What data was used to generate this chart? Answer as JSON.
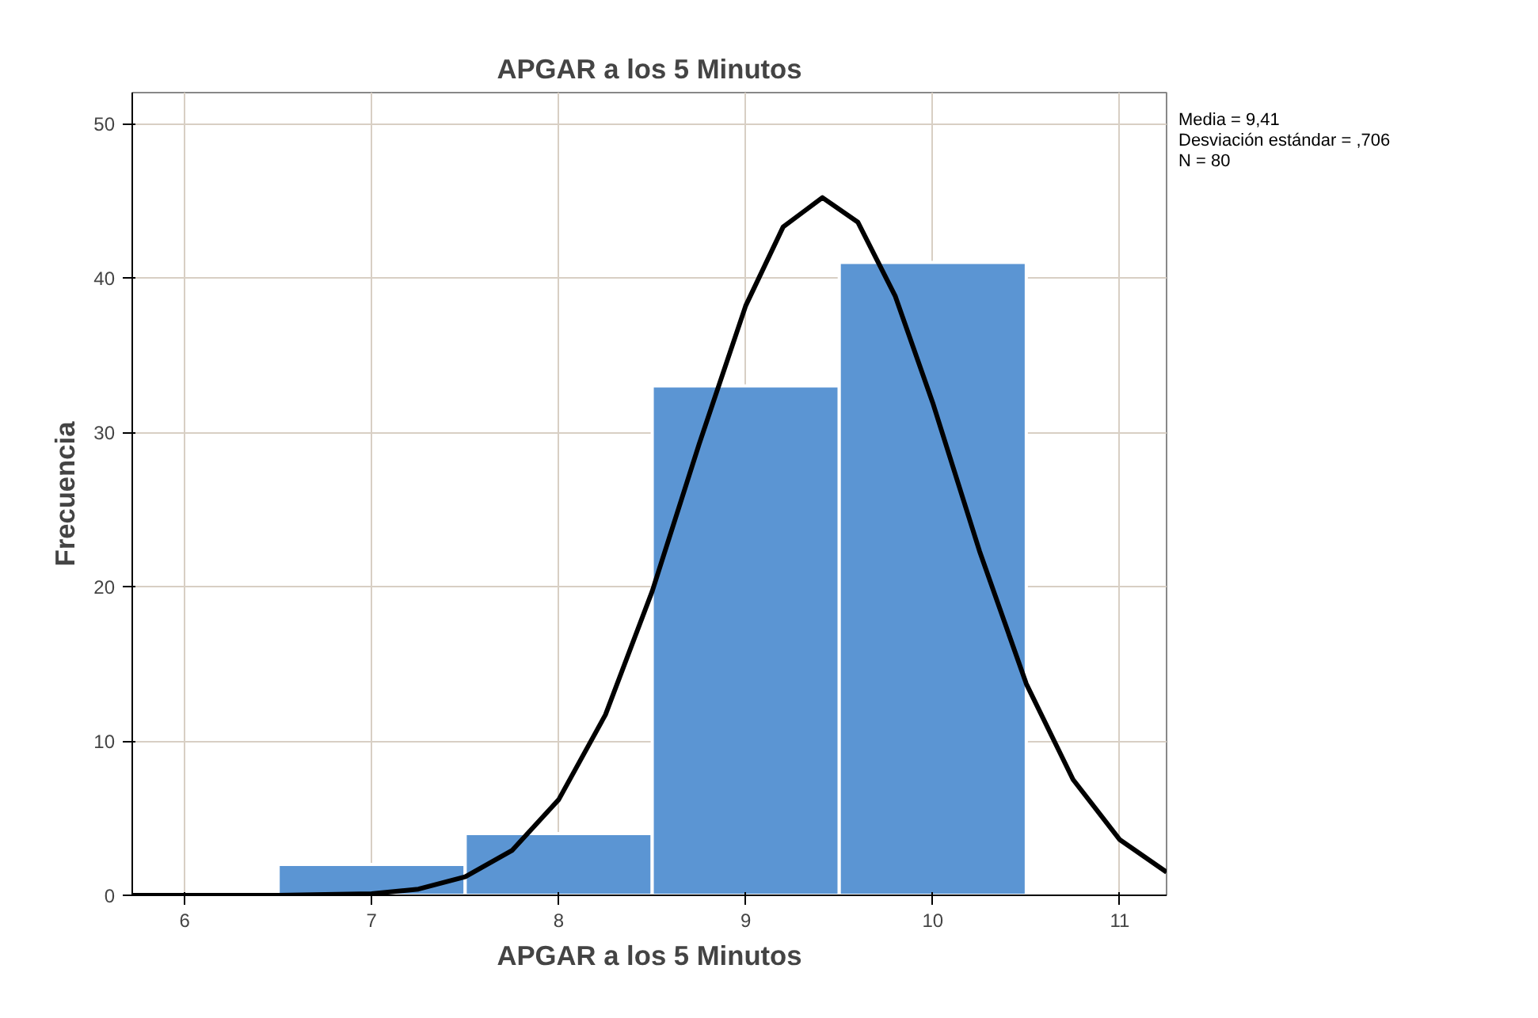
{
  "chart_data": {
    "type": "histogram",
    "title": "APGAR a los 5 Minutos",
    "xlabel": "APGAR a los 5 Minutos",
    "ylabel": "Frecuencia",
    "bins": [
      6.5,
      7.5,
      8.5,
      9.5,
      10.5
    ],
    "values": [
      2,
      4,
      33,
      41
    ],
    "color": "#5b95d3",
    "series": [
      {
        "type": "line",
        "color": "#000000",
        "x": [
          5.72,
          6.5,
          7,
          7.25,
          7.5,
          7.75,
          8,
          8.25,
          8.5,
          8.75,
          9,
          9.2,
          9.41,
          9.6,
          9.8,
          10,
          10.25,
          10.5,
          10.75,
          11,
          11.25
        ],
        "values": [
          0,
          0,
          0.1,
          0.4,
          1.2,
          2.9,
          6.2,
          11.7,
          19.7,
          29.2,
          38.2,
          43.3,
          45.2,
          43.6,
          38.8,
          31.9,
          22.3,
          13.7,
          7.5,
          3.6,
          1.5
        ]
      }
    ],
    "xlim": [
      5.72,
      11.25
    ],
    "ylim": [
      0,
      52
    ],
    "xticks": [
      6,
      7,
      8,
      9,
      10,
      11
    ],
    "yticks": [
      0,
      10,
      20,
      30,
      40,
      50
    ],
    "grid": true,
    "annotations": [
      "Media = 9,41",
      "Desviación estándar = ,706",
      "N = 80"
    ]
  }
}
